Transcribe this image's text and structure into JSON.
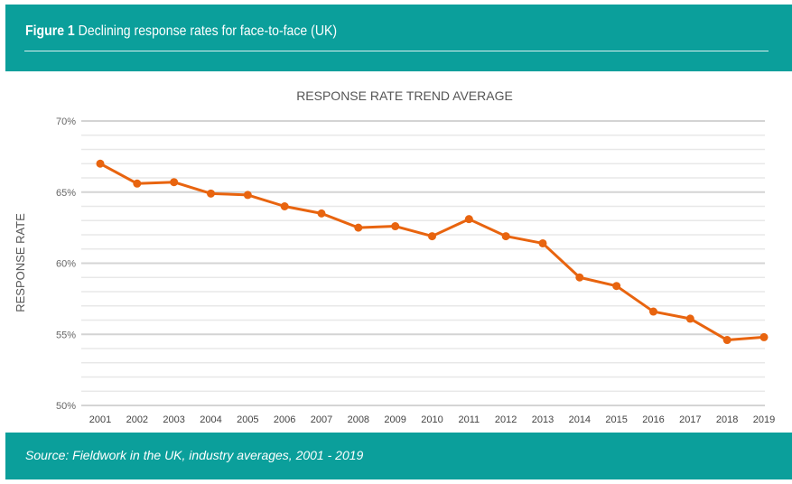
{
  "header": {
    "figure_label": "Figure 1",
    "title": "Declining response rates for face-to-face (UK)"
  },
  "footer": {
    "source": "Source: Fieldwork in the UK, industry averages, 2001 - 2019"
  },
  "colors": {
    "teal": "#0b9f9b",
    "line": "#e8640f",
    "grid": "#d9d9d9"
  },
  "chart_data": {
    "type": "line",
    "title": "RESPONSE RATE TREND AVERAGE",
    "xlabel": "",
    "ylabel": "RESPONSE RATE",
    "ylim": [
      50,
      70
    ],
    "yticks": [
      "50%",
      "55%",
      "60%",
      "65%",
      "70%"
    ],
    "grid": true,
    "categories": [
      "2001",
      "2002",
      "2003",
      "2004",
      "2005",
      "2006",
      "2007",
      "2008",
      "2009",
      "2010",
      "2011",
      "2012",
      "2013",
      "2014",
      "2015",
      "2016",
      "2017",
      "2018",
      "2019"
    ],
    "values": [
      67.0,
      65.6,
      65.7,
      64.9,
      64.8,
      64.0,
      63.5,
      62.5,
      62.6,
      61.9,
      63.1,
      61.9,
      61.4,
      59.0,
      58.4,
      56.6,
      56.1,
      54.6,
      54.8
    ]
  }
}
